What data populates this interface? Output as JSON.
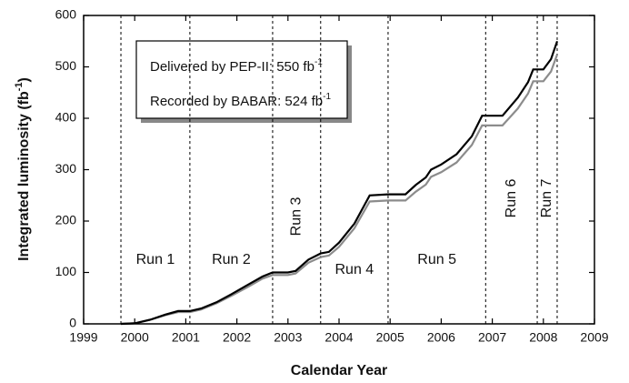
{
  "chart_data": {
    "type": "line",
    "xlabel": "Calendar Year",
    "ylabel": [
      "Integrated luminosity (fb",
      "-1",
      ")"
    ],
    "unit_exponent": "-1",
    "x": [
      1999.73,
      2000.0,
      2000.3,
      2000.6,
      2000.85,
      2001.08,
      2001.3,
      2001.6,
      2001.9,
      2002.2,
      2002.5,
      2002.7,
      2003.0,
      2003.15,
      2003.4,
      2003.64,
      2003.8,
      2004.0,
      2004.3,
      2004.6,
      2004.96,
      2005.3,
      2005.5,
      2005.7,
      2005.8,
      2006.0,
      2006.3,
      2006.6,
      2006.8,
      2006.87,
      2007.2,
      2007.5,
      2007.7,
      2007.8,
      2007.88,
      2008.0,
      2008.15,
      2008.27
    ],
    "series": [
      {
        "name": "Delivered by PEP-II: 550 fb",
        "color": "#000000",
        "values": [
          0,
          1,
          8,
          18,
          25,
          25,
          30,
          42,
          58,
          75,
          92,
          100,
          100,
          103,
          125,
          137,
          140,
          158,
          195,
          250,
          252,
          252,
          270,
          285,
          300,
          310,
          330,
          365,
          405,
          405,
          405,
          440,
          470,
          495,
          495,
          495,
          515,
          550
        ]
      },
      {
        "name": "Recorded by BABAR: 524 fb",
        "color": "#8c8c8c",
        "values": [
          0,
          1,
          8,
          17,
          23,
          23,
          28,
          40,
          55,
          71,
          88,
          95,
          95,
          98,
          119,
          130,
          133,
          150,
          186,
          238,
          240,
          240,
          257,
          271,
          286,
          295,
          314,
          348,
          386,
          386,
          386,
          419,
          448,
          472,
          472,
          472,
          491,
          524
        ]
      }
    ],
    "run_boundaries": [
      1999.73,
      2001.08,
      2002.7,
      2003.64,
      2004.96,
      2006.87,
      2007.88,
      2008.27
    ],
    "run_labels": [
      "Run 1",
      "Run 2",
      "Run 3",
      "Run 4",
      "Run 5",
      "Run 6",
      "Run 7"
    ],
    "xlim": [
      1999,
      2009
    ],
    "xticks": [
      1999,
      2000,
      2001,
      2002,
      2003,
      2004,
      2005,
      2006,
      2007,
      2008,
      2009
    ],
    "ylim": [
      0,
      600
    ],
    "yticks": [
      0,
      100,
      200,
      300,
      400,
      500,
      600
    ]
  }
}
